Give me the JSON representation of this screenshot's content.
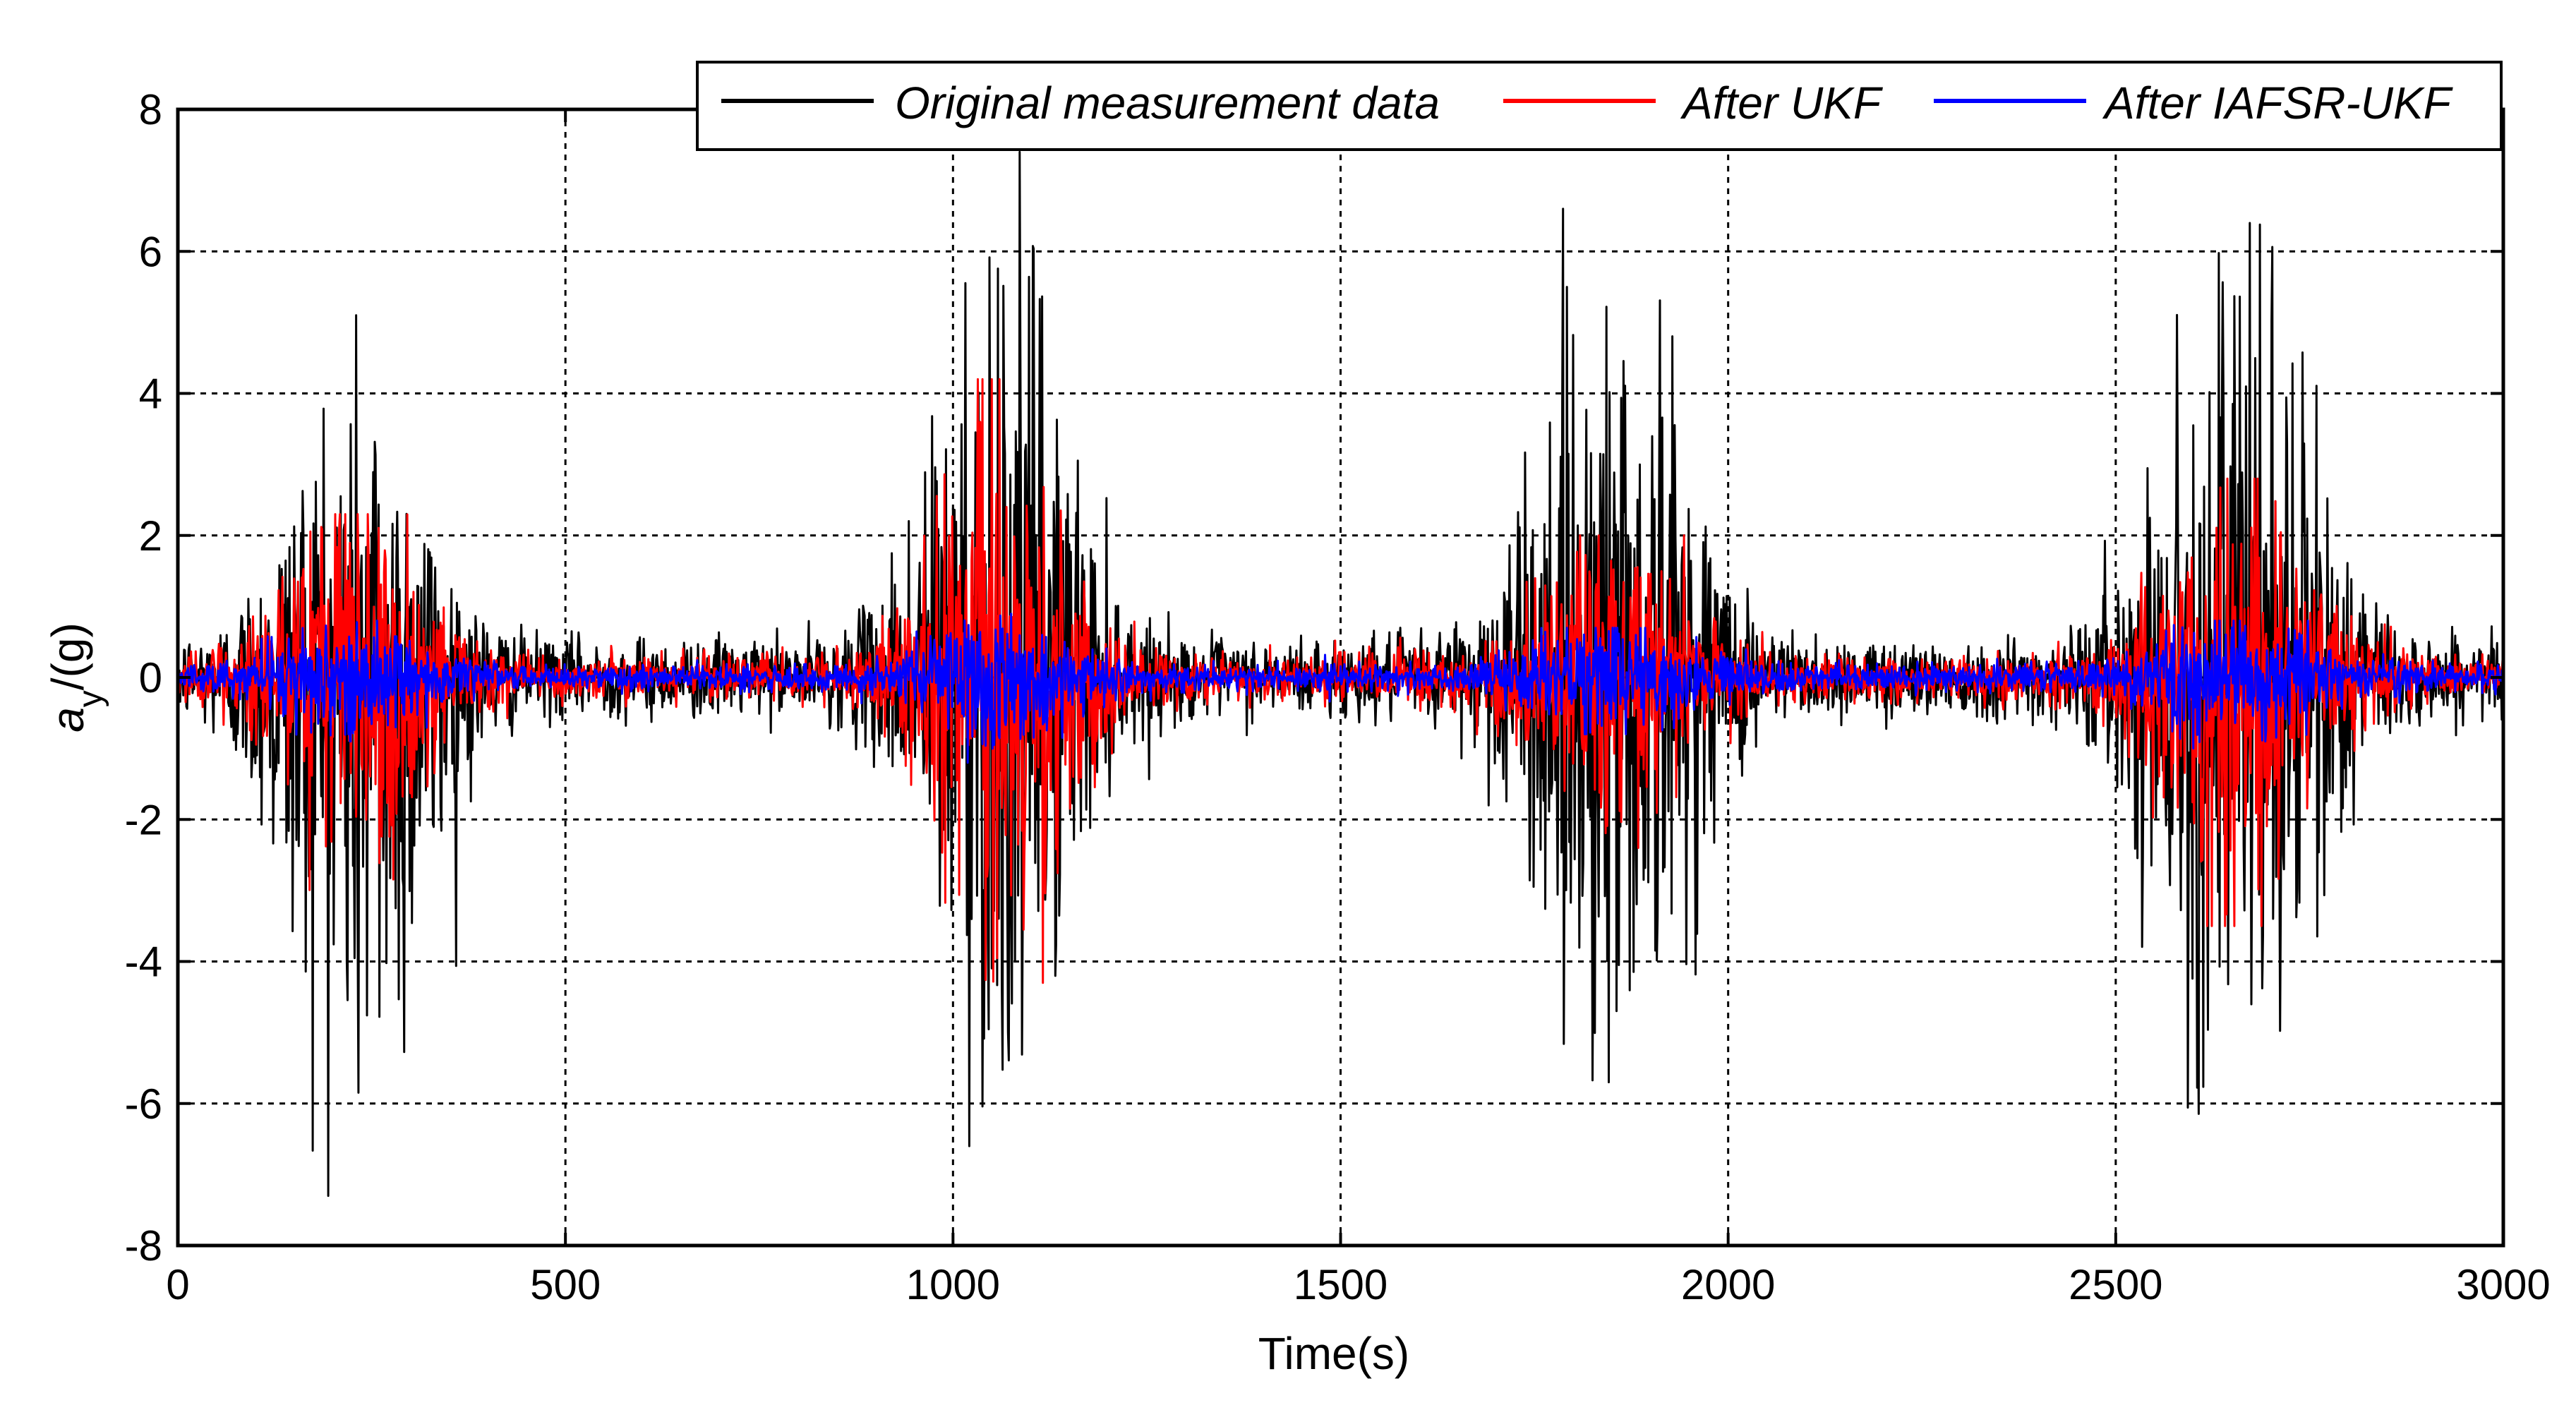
{
  "chart_data": {
    "type": "line",
    "title": "",
    "xlabel": "Time(s)",
    "ylabel_main": "a",
    "ylabel_sub": "y",
    "ylabel_unit": "/(g)",
    "xlim": [
      0,
      3000
    ],
    "ylim": [
      -8,
      8
    ],
    "xticks": [
      0,
      500,
      1000,
      1500,
      2000,
      2500,
      3000
    ],
    "yticks": [
      -8,
      -6,
      -4,
      -2,
      0,
      2,
      4,
      6,
      8
    ],
    "xtick_labels": [
      "0",
      "500",
      "1000",
      "1500",
      "2000",
      "2500",
      "3000"
    ],
    "ytick_labels": [
      "-8",
      "-6",
      "-4",
      "-2",
      "0",
      "2",
      "4",
      "6",
      "8"
    ],
    "grid": true,
    "legend_position": "top-right",
    "series": [
      {
        "name": "Original measurement data",
        "color": "#000000",
        "baseline_amplitude": 0.6,
        "bursts": [
          {
            "center": 230,
            "width": 75,
            "peak_max": 5.1,
            "peak_min": -7.3
          },
          {
            "center": 1060,
            "width": 75,
            "peak_max": 7.4,
            "peak_min": -6.6
          },
          {
            "center": 1850,
            "width": 85,
            "peak_max": 6.6,
            "peak_min": -5.7
          },
          {
            "center": 2660,
            "width": 85,
            "peak_max": 6.4,
            "peak_min": -6.5
          }
        ]
      },
      {
        "name": "After UKF",
        "color": "#ff0000",
        "baseline_amplitude": 0.35,
        "bursts": [
          {
            "center": 230,
            "width": 75,
            "peak_max": 2.3,
            "peak_min": -3.2
          },
          {
            "center": 1060,
            "width": 75,
            "peak_max": 4.2,
            "peak_min": -4.3
          },
          {
            "center": 1850,
            "width": 85,
            "peak_max": 2.0,
            "peak_min": -2.4
          },
          {
            "center": 2660,
            "width": 85,
            "peak_max": 2.8,
            "peak_min": -3.5
          }
        ]
      },
      {
        "name": "After IAFSR-UKF",
        "color": "#0000ff",
        "baseline_amplitude": 0.2,
        "bursts": [
          {
            "center": 230,
            "width": 75,
            "peak_max": 0.8,
            "peak_min": -0.9
          },
          {
            "center": 1060,
            "width": 75,
            "peak_max": 1.0,
            "peak_min": -1.2
          },
          {
            "center": 1850,
            "width": 85,
            "peak_max": 0.7,
            "peak_min": -0.8
          },
          {
            "center": 2660,
            "width": 85,
            "peak_max": 0.8,
            "peak_min": -1.0
          }
        ]
      }
    ]
  }
}
